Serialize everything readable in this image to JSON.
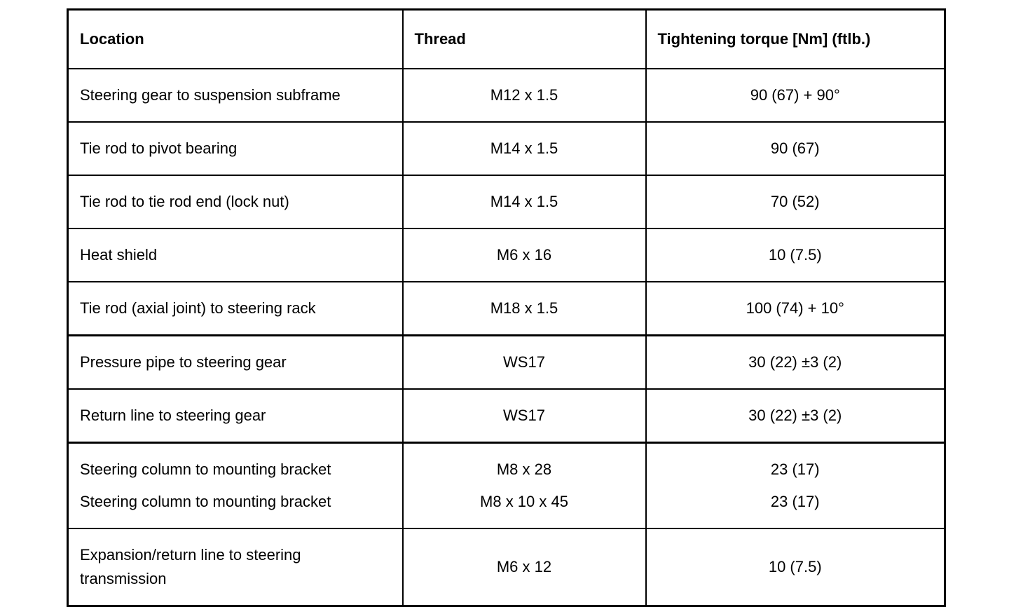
{
  "page": {
    "background_color": "#ffffff",
    "text_color": "#000000",
    "border_color": "#000000"
  },
  "table": {
    "headers": {
      "location": "Location",
      "thread": "Thread",
      "torque": "Tightening torque [Nm] (ftlb.)"
    },
    "rows": [
      {
        "location": "Steering gear to suspension subframe",
        "thread": "M12 x 1.5",
        "torque": "90 (67) + 90°"
      },
      {
        "location": "Tie rod to pivot bearing",
        "thread": "M14 x 1.5",
        "torque": "90 (67)"
      },
      {
        "location": "Tie rod to tie rod end (lock nut)",
        "thread": "M14 x 1.5",
        "torque": "70 (52)"
      },
      {
        "location": "Heat shield",
        "thread": "M6 x 16",
        "torque": "10 (7.5)"
      },
      {
        "location": "Tie rod (axial joint) to steering rack",
        "thread": "M18 x 1.5",
        "torque": "100 (74) + 10°"
      },
      {
        "location": "Pressure pipe to steering gear",
        "thread": "WS17",
        "torque": "30 (22) ±3 (2)"
      },
      {
        "location": "Return line to steering gear",
        "thread": "WS17",
        "torque": "30 (22) ±3 (2)"
      },
      {
        "location": [
          "Steering column to mounting bracket",
          "Steering column to mounting bracket"
        ],
        "thread": [
          "M8 x 28",
          "M8 x 10 x 45"
        ],
        "torque": [
          "23 (17)",
          "23 (17)"
        ]
      },
      {
        "location": "Expansion/return line to steering transmission",
        "thread": "M6 x 12",
        "torque": "10 (7.5)"
      }
    ]
  }
}
